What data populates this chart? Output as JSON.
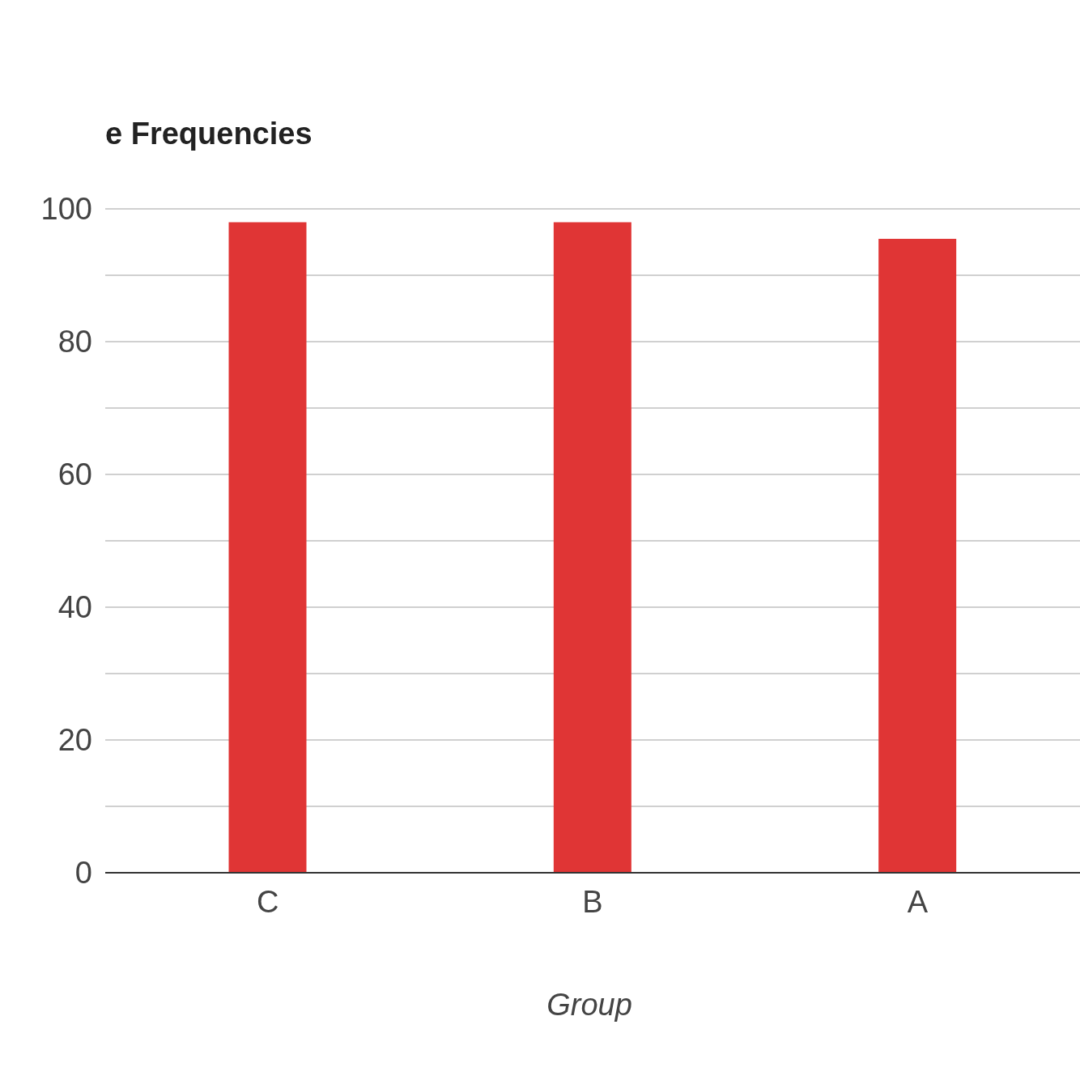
{
  "chart_data": {
    "type": "bar",
    "title": "e Frequencies",
    "xlabel": "Group",
    "categories": [
      "C",
      "B",
      "A"
    ],
    "values": [
      98,
      98,
      95.5
    ],
    "color": "#e03535",
    "ylim": [
      0,
      100
    ],
    "yticks": [
      0,
      {
        "value": 10,
        "label": null
      },
      20,
      {
        "value": 30,
        "label": null
      },
      40,
      {
        "value": 50,
        "label": null
      },
      60,
      {
        "value": 70,
        "label": null
      },
      80,
      {
        "value": 90,
        "label": null
      },
      100
    ],
    "grid": "y"
  }
}
